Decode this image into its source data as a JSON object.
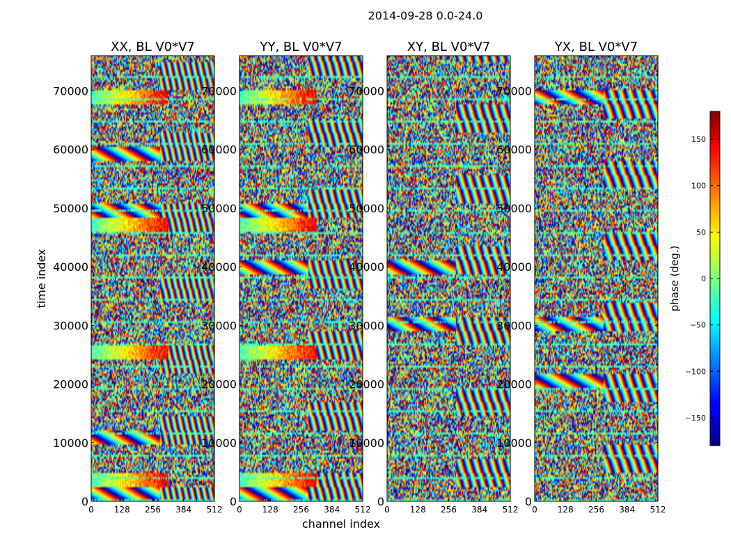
{
  "figure": {
    "suptitle": "2014-09-28 0.0-24.0"
  },
  "chart_data": {
    "type": "heatmap",
    "title": "2014-09-28 0.0-24.0",
    "xlabel": "channel index",
    "ylabel": "time index",
    "xlim": [
      0,
      512
    ],
    "ylim": [
      0,
      76000
    ],
    "x_ticks": [
      0,
      128,
      256,
      384,
      512
    ],
    "y_ticks": [
      0,
      10000,
      20000,
      30000,
      40000,
      50000,
      60000,
      70000
    ],
    "panels": [
      {
        "id": "xx",
        "title": "XX, BL V0*V7"
      },
      {
        "id": "yy",
        "title": "YY, BL V0*V7"
      },
      {
        "id": "xy",
        "title": "XY, BL V0*V7"
      },
      {
        "id": "yx",
        "title": "YX, BL V0*V7"
      }
    ],
    "colorbar": {
      "label": "phase (deg.)",
      "range": [
        -180,
        180
      ],
      "ticks": [
        -150,
        -100,
        -50,
        0,
        50,
        100,
        150
      ],
      "colormap": "jet"
    },
    "grid": false
  }
}
